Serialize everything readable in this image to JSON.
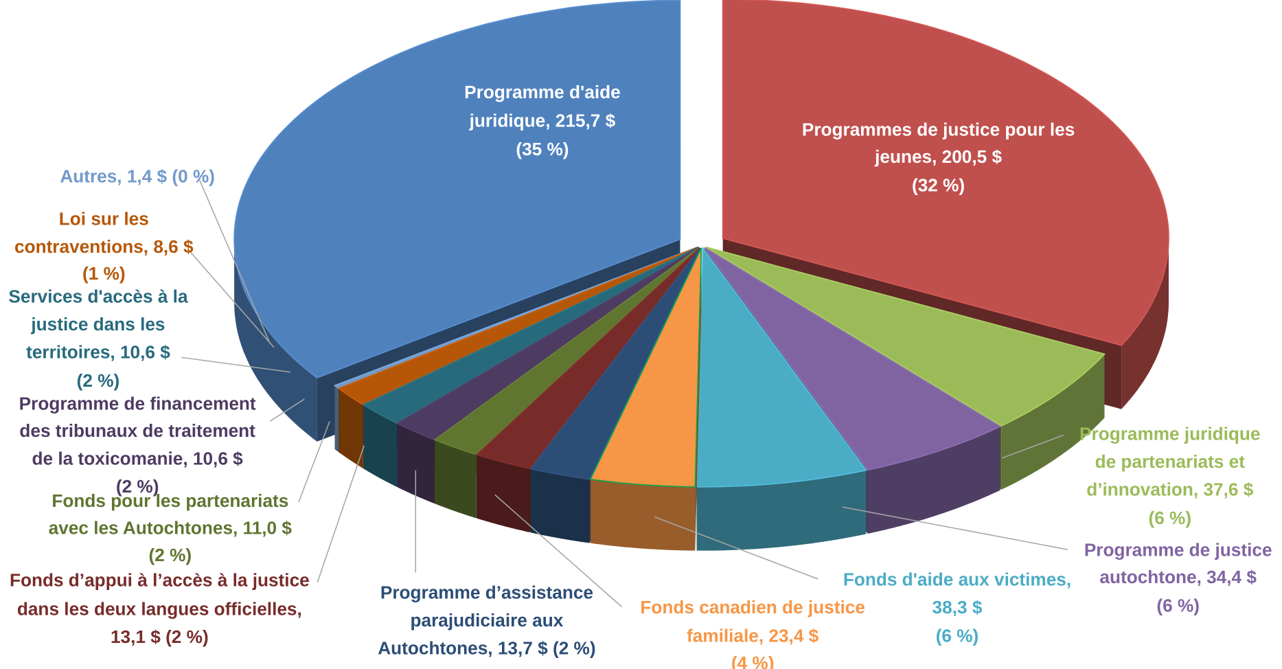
{
  "chart_data": {
    "type": "pie",
    "style": "3d-exploded",
    "title": "",
    "unit": "$",
    "slices": [
      {
        "name": "Programmes de justice pour les jeunes",
        "value": 200.5,
        "percent": 32,
        "color": "#c0504d",
        "exploded": true,
        "label_lines": [
          "Programmes de justice pour les",
          "jeunes, 200,5 $",
          "(32 %)"
        ],
        "label_color": "#ffffff"
      },
      {
        "name": "Programme juridique de partenariats et d’innovation",
        "value": 37.6,
        "percent": 6,
        "color": "#9bbb59",
        "label_lines": [
          "Programme juridique",
          "de partenariats et",
          "d’innovation, 37,6 $",
          "(6 %)"
        ],
        "label_color": "#9bbb59"
      },
      {
        "name": "Programme de justice autochtone",
        "value": 34.4,
        "percent": 6,
        "color": "#8064a2",
        "label_lines": [
          "Programme de justice",
          "autochtone, 34,4 $",
          "(6 %)"
        ],
        "label_color": "#8064a2"
      },
      {
        "name": "Fonds d'aide aux victimes",
        "value": 38.3,
        "percent": 6,
        "color": "#4bacc6",
        "label_lines": [
          "Fonds d'aide aux victimes,",
          "38,3 $",
          "(6 %)"
        ],
        "label_color": "#4bacc6"
      },
      {
        "name": "Fonds canadien de justice familiale",
        "value": 23.4,
        "percent": 4,
        "color": "#f79646",
        "label_lines": [
          "Fonds canadien de justice",
          "familiale, 23,4 $",
          "(4 %)"
        ],
        "label_color": "#f79646"
      },
      {
        "name": "Programme d’assistance parajudiciaire aux Autochtones",
        "value": 13.7,
        "percent": 2,
        "color": "#2c4d75",
        "label_lines": [
          "Programme d’assistance",
          "parajudiciaire aux",
          "Autochtones, 13,7 $ (2 %)"
        ],
        "label_color": "#2c4d75"
      },
      {
        "name": "Fonds d’appui à l’accès à la justice dans les deux langues officielles",
        "value": 13.1,
        "percent": 2,
        "color": "#772c2a",
        "label_lines": [
          "Fonds d’appui à l’accès à la justice",
          "dans les deux langues officielles,",
          "13,1 $ (2 %)"
        ],
        "label_color": "#772c2a"
      },
      {
        "name": "Fonds pour les partenariats avec les Autochtones",
        "value": 11.0,
        "percent": 2,
        "color": "#5f7530",
        "label_lines": [
          "Fonds pour les partenariats",
          "avec les Autochtones, 11,0 $",
          "(2 %)"
        ],
        "label_color": "#5f7530"
      },
      {
        "name": "Programme de financement des tribunaux de traitement de la toxicomanie",
        "value": 10.6,
        "percent": 2,
        "color": "#4d3b62",
        "label_lines": [
          "Programme de financement",
          "des tribunaux de traitement",
          "de la toxicomanie, 10,6 $",
          "(2 %)"
        ],
        "label_color": "#4d3b62"
      },
      {
        "name": "Services d'accès à la justice dans les territoires",
        "value": 10.6,
        "percent": 2,
        "color": "#276a7c",
        "label_lines": [
          "Services d'accès à la",
          "justice dans les",
          "territoires, 10,6 $",
          "(2 %)"
        ],
        "label_color": "#276a7c"
      },
      {
        "name": "Loi sur les contraventions",
        "value": 8.6,
        "percent": 1,
        "color": "#b65708",
        "label_lines": [
          "Loi sur les",
          "contraventions, 8,6 $",
          "(1 %)"
        ],
        "label_color": "#b65708"
      },
      {
        "name": "Autres",
        "value": 1.4,
        "percent": 0,
        "color": "#729aca",
        "label_lines": [
          "Autres, 1,4 $ (0 %)"
        ],
        "label_color": "#729aca"
      },
      {
        "name": "Programme d'aide juridique",
        "value": 215.7,
        "percent": 35,
        "color": "#4f81bd",
        "exploded": true,
        "label_lines": [
          "Programme d'aide",
          "juridique, 215,7 $",
          "(35 %)"
        ],
        "label_color": "#ffffff"
      }
    ]
  }
}
